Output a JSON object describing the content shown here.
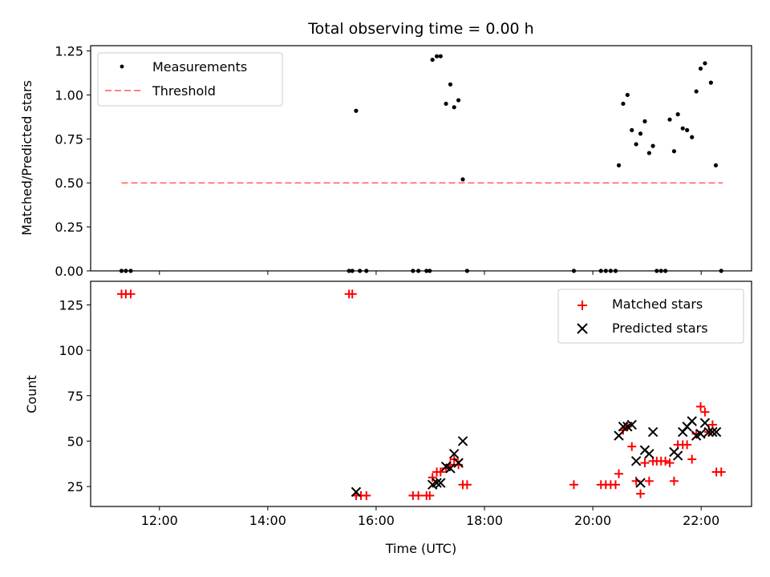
{
  "chart_data": [
    {
      "type": "scatter",
      "title": "Total observing time = 0.00 h",
      "xlabel": "",
      "ylabel": "Matched/Predicted stars",
      "xlim": [
        10.73,
        22.93
      ],
      "ylim": [
        0,
        1.28
      ],
      "yticks": [
        0,
        0.25,
        0.5,
        0.75,
        1.0,
        1.25
      ],
      "ytick_labels": [
        "0.00",
        "0.25",
        "0.50",
        "0.75",
        "1.00",
        "1.25"
      ],
      "legend": "top-left",
      "series": [
        {
          "name": "Measurements",
          "marker": "dot",
          "color": "#000000",
          "points": [
            [
              11.3,
              0
            ],
            [
              11.38,
              0
            ],
            [
              11.47,
              0
            ],
            [
              15.5,
              0
            ],
            [
              15.56,
              0
            ],
            [
              15.63,
              0.91
            ],
            [
              15.7,
              0
            ],
            [
              15.82,
              0
            ],
            [
              16.68,
              0
            ],
            [
              16.78,
              0
            ],
            [
              16.93,
              0
            ],
            [
              16.99,
              0
            ],
            [
              17.04,
              1.2
            ],
            [
              17.12,
              1.22
            ],
            [
              17.19,
              1.22
            ],
            [
              17.29,
              0.95
            ],
            [
              17.37,
              1.06
            ],
            [
              17.44,
              0.93
            ],
            [
              17.52,
              0.97
            ],
            [
              17.6,
              0.52
            ],
            [
              17.68,
              0
            ],
            [
              19.65,
              0
            ],
            [
              20.15,
              0
            ],
            [
              20.24,
              0
            ],
            [
              20.33,
              0
            ],
            [
              20.42,
              0
            ],
            [
              20.48,
              0.6
            ],
            [
              20.56,
              0.95
            ],
            [
              20.64,
              1.0
            ],
            [
              20.72,
              0.8
            ],
            [
              20.8,
              0.72
            ],
            [
              20.88,
              0.78
            ],
            [
              20.96,
              0.85
            ],
            [
              21.04,
              0.67
            ],
            [
              21.11,
              0.71
            ],
            [
              21.18,
              0
            ],
            [
              21.26,
              0
            ],
            [
              21.34,
              0
            ],
            [
              21.42,
              0.86
            ],
            [
              21.5,
              0.68
            ],
            [
              21.57,
              0.89
            ],
            [
              21.66,
              0.81
            ],
            [
              21.74,
              0.8
            ],
            [
              21.83,
              0.76
            ],
            [
              21.91,
              1.02
            ],
            [
              21.99,
              1.15
            ],
            [
              22.07,
              1.18
            ],
            [
              22.18,
              1.07
            ],
            [
              22.27,
              0.6
            ],
            [
              22.37,
              0
            ]
          ]
        },
        {
          "name": "Threshold",
          "marker": "dashed-line",
          "color": "#ff8080",
          "points": [
            [
              11.3,
              0.5
            ],
            [
              22.4,
              0.5
            ]
          ]
        }
      ]
    },
    {
      "type": "scatter",
      "title": "",
      "xlabel": "Time (UTC)",
      "ylabel": "Count",
      "xlim": [
        10.73,
        22.93
      ],
      "ylim": [
        14,
        138
      ],
      "yticks": [
        25,
        50,
        75,
        100,
        125
      ],
      "ytick_labels": [
        "25",
        "50",
        "75",
        "100",
        "125"
      ],
      "xticks": [
        12,
        14,
        16,
        18,
        20,
        22
      ],
      "xtick_labels": [
        "12:00",
        "14:00",
        "16:00",
        "18:00",
        "20:00",
        "22:00"
      ],
      "legend": "top-right",
      "series": [
        {
          "name": "Matched stars",
          "marker": "plus",
          "color": "#ff0000",
          "points": [
            [
              11.3,
              131
            ],
            [
              11.38,
              131
            ],
            [
              11.47,
              131
            ],
            [
              15.5,
              131
            ],
            [
              15.56,
              131
            ],
            [
              15.63,
              20
            ],
            [
              15.72,
              20
            ],
            [
              15.82,
              20
            ],
            [
              16.68,
              20
            ],
            [
              16.78,
              20
            ],
            [
              16.93,
              20
            ],
            [
              16.99,
              20
            ],
            [
              17.04,
              30
            ],
            [
              17.12,
              33
            ],
            [
              17.19,
              33
            ],
            [
              17.29,
              35
            ],
            [
              17.37,
              37
            ],
            [
              17.44,
              40
            ],
            [
              17.52,
              37
            ],
            [
              17.6,
              26
            ],
            [
              17.68,
              26
            ],
            [
              19.65,
              26
            ],
            [
              20.15,
              26
            ],
            [
              20.24,
              26
            ],
            [
              20.33,
              26
            ],
            [
              20.42,
              26
            ],
            [
              20.48,
              32
            ],
            [
              20.56,
              56
            ],
            [
              20.64,
              58
            ],
            [
              20.72,
              47
            ],
            [
              20.8,
              28
            ],
            [
              20.88,
              21
            ],
            [
              20.96,
              38
            ],
            [
              21.04,
              28
            ],
            [
              21.11,
              39
            ],
            [
              21.18,
              39
            ],
            [
              21.26,
              39
            ],
            [
              21.34,
              39
            ],
            [
              21.42,
              38
            ],
            [
              21.5,
              28
            ],
            [
              21.57,
              48
            ],
            [
              21.66,
              48
            ],
            [
              21.74,
              48
            ],
            [
              21.83,
              40
            ],
            [
              21.91,
              54
            ],
            [
              21.99,
              69
            ],
            [
              22.07,
              66
            ],
            [
              22.14,
              55
            ],
            [
              22.21,
              59
            ],
            [
              22.28,
              33
            ],
            [
              22.37,
              33
            ]
          ]
        },
        {
          "name": "Predicted stars",
          "marker": "x",
          "color": "#000000",
          "points": [
            [
              15.63,
              22
            ],
            [
              17.04,
              26
            ],
            [
              17.12,
              27
            ],
            [
              17.19,
              27
            ],
            [
              17.29,
              36
            ],
            [
              17.37,
              35
            ],
            [
              17.44,
              43
            ],
            [
              17.52,
              38
            ],
            [
              17.6,
              50
            ],
            [
              20.48,
              53
            ],
            [
              20.56,
              58
            ],
            [
              20.64,
              58
            ],
            [
              20.72,
              59
            ],
            [
              20.8,
              39
            ],
            [
              20.88,
              27
            ],
            [
              20.96,
              45
            ],
            [
              21.04,
              43
            ],
            [
              21.11,
              55
            ],
            [
              21.5,
              44
            ],
            [
              21.57,
              42
            ],
            [
              21.66,
              55
            ],
            [
              21.74,
              58
            ],
            [
              21.83,
              61
            ],
            [
              21.91,
              53
            ],
            [
              21.99,
              54
            ],
            [
              22.07,
              60
            ],
            [
              22.14,
              55
            ],
            [
              22.21,
              55
            ],
            [
              22.28,
              55
            ]
          ]
        }
      ]
    }
  ]
}
